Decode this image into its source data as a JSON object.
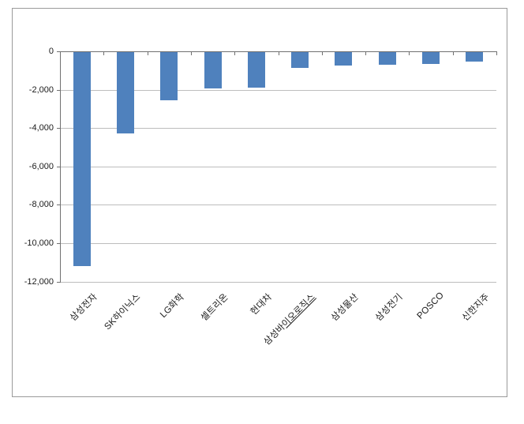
{
  "chart_data": {
    "type": "bar",
    "title": "",
    "categories": [
      "삼성전자",
      "SK하이닉스",
      "LG화학",
      "셀트리온",
      "현대차",
      "삼성바이오로직스",
      "삼성물산",
      "삼성전기",
      "POSCO",
      "신한지주"
    ],
    "values": [
      -11200,
      -4300,
      -2550,
      -1950,
      -1900,
      -870,
      -760,
      -720,
      -670,
      -550
    ],
    "xlabel": "",
    "ylabel": "",
    "ylim": [
      -12000,
      0
    ],
    "ytick_interval": 2000,
    "ytick_labels": [
      "0",
      "-2,000",
      "-4,000",
      "-6,000",
      "-8,000",
      "-10,000",
      "-12,000"
    ],
    "grid": true,
    "legend": "none",
    "orientation": "vertical-negative",
    "colors": {
      "bar": "#4F81BD",
      "gridline": "#BDBDBD",
      "axis": "#707070",
      "frame_border": "#9A9A9A",
      "text": "#1A1A1A",
      "background": "#FFFFFF"
    },
    "label_decoration": {
      "index": 5,
      "prefix": "삼성바",
      "underlined": "이오로직스"
    }
  }
}
